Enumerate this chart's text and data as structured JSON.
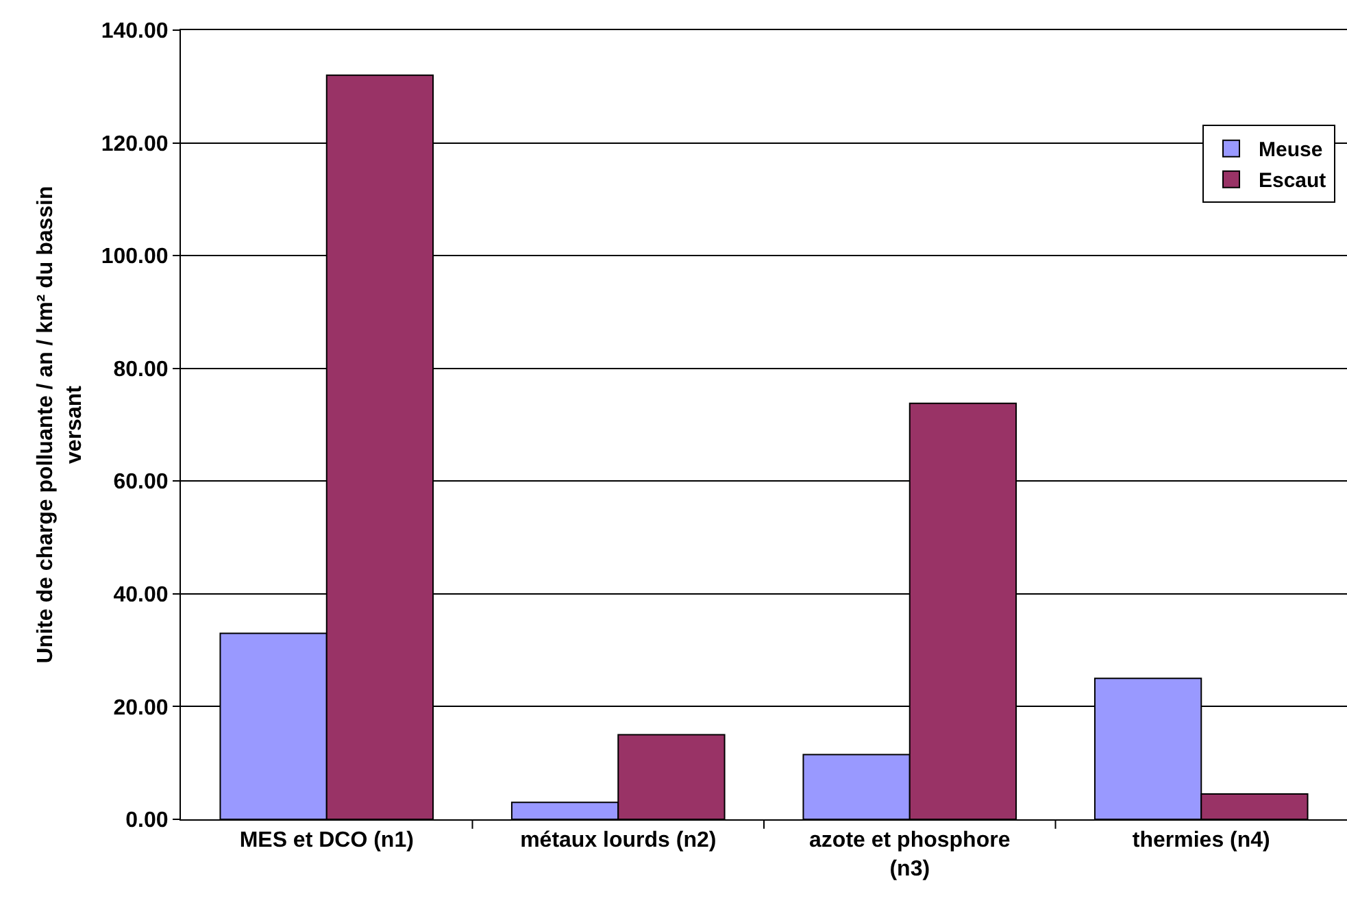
{
  "chart_data": {
    "type": "bar",
    "ylabel": "Unite de charge polluante / an / km² du bassin versant",
    "categories": [
      "MES et DCO (n1)",
      "métaux lourds (n2)",
      "azote et phosphore (n3)",
      "thermies (n4)"
    ],
    "series": [
      {
        "name": "Meuse",
        "color": "#9999ff",
        "values": [
          33,
          3,
          11.5,
          25
        ]
      },
      {
        "name": "Escaut",
        "color": "#993366",
        "values": [
          132,
          15,
          73.8,
          4.5
        ]
      }
    ],
    "ylim": [
      0,
      140
    ],
    "yticks": [
      {
        "value": 0,
        "label": "0.00"
      },
      {
        "value": 20,
        "label": "20.00"
      },
      {
        "value": 40,
        "label": "40.00"
      },
      {
        "value": 60,
        "label": "60.00"
      },
      {
        "value": 80,
        "label": "80.00"
      },
      {
        "value": 100,
        "label": "100.00"
      },
      {
        "value": 120,
        "label": "120.00"
      },
      {
        "value": 140,
        "label": "140.00"
      }
    ],
    "grid": "y",
    "legend": "top right"
  }
}
